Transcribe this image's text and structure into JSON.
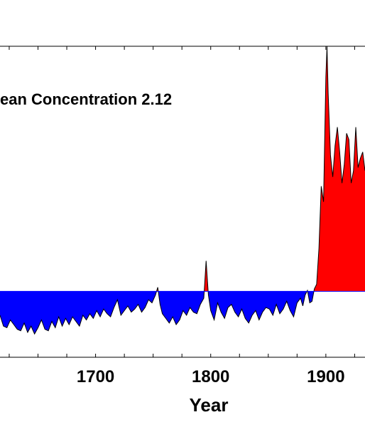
{
  "chart_data": {
    "type": "area",
    "title": "",
    "xlabel": "Year",
    "ylabel": "",
    "annotation": "ean Concentration 2.12",
    "x_ticks": [
      1700,
      1800,
      1900
    ],
    "xlim": [
      1617,
      1934
    ],
    "ylim": [
      0,
      10
    ],
    "baseline": 2.12,
    "colors": {
      "above": "#ff0000",
      "below": "#0000ff",
      "line": "#000000"
    },
    "series": [
      {
        "x": [
          1617,
          1620,
          1623,
          1626,
          1629,
          1632,
          1635,
          1638,
          1641,
          1644,
          1647,
          1650,
          1653,
          1656,
          1659,
          1662,
          1665,
          1668,
          1671,
          1674,
          1677,
          1680,
          1683,
          1686,
          1689,
          1692,
          1695,
          1698,
          1701,
          1704,
          1707,
          1710,
          1713,
          1716,
          1719,
          1722,
          1725,
          1728,
          1731,
          1734,
          1737,
          1740,
          1743,
          1746,
          1749,
          1752,
          1754,
          1756,
          1758,
          1761,
          1764,
          1767,
          1770,
          1773,
          1776,
          1779,
          1782,
          1785,
          1788,
          1791,
          1794,
          1796,
          1798,
          1800,
          1803,
          1806,
          1809,
          1812,
          1815,
          1818,
          1821,
          1824,
          1827,
          1830,
          1833,
          1836,
          1839,
          1842,
          1845,
          1848,
          1851,
          1854,
          1857,
          1860,
          1863,
          1866,
          1869,
          1872,
          1875,
          1878,
          1880,
          1882,
          1884,
          1886,
          1888,
          1890,
          1892,
          1894,
          1896,
          1898,
          1899,
          1900,
          1901,
          1902,
          1904,
          1906,
          1908,
          1910,
          1912,
          1914,
          1916,
          1918,
          1920,
          1922,
          1924,
          1926,
          1928,
          1930,
          1932,
          1934
        ],
        "values": [
          1.35,
          1.0,
          0.95,
          1.2,
          1.05,
          0.9,
          0.85,
          1.1,
          0.8,
          1.0,
          0.75,
          0.95,
          1.2,
          0.9,
          0.85,
          1.15,
          0.95,
          1.3,
          1.0,
          1.25,
          1.05,
          1.3,
          1.15,
          1.0,
          1.35,
          1.2,
          1.4,
          1.25,
          1.5,
          1.3,
          1.55,
          1.4,
          1.3,
          1.6,
          1.85,
          1.35,
          1.5,
          1.65,
          1.45,
          1.55,
          1.7,
          1.45,
          1.6,
          1.85,
          1.75,
          2.0,
          2.25,
          1.7,
          1.4,
          1.25,
          1.1,
          1.3,
          1.05,
          1.2,
          1.5,
          1.35,
          1.6,
          1.45,
          1.4,
          1.7,
          1.9,
          3.1,
          2.0,
          1.5,
          1.2,
          1.75,
          1.45,
          1.25,
          1.6,
          1.7,
          1.45,
          1.3,
          1.55,
          1.25,
          1.1,
          1.35,
          1.5,
          1.2,
          1.45,
          1.6,
          1.55,
          1.35,
          1.7,
          1.4,
          1.55,
          1.8,
          1.5,
          1.3,
          1.75,
          1.9,
          1.65,
          2.0,
          2.15,
          1.75,
          1.8,
          2.2,
          2.35,
          3.5,
          5.5,
          5.0,
          7.0,
          9.0,
          10.0,
          8.5,
          6.5,
          5.8,
          6.8,
          7.4,
          6.6,
          5.6,
          6.2,
          7.2,
          7.0,
          5.6,
          6.0,
          7.4,
          6.1,
          6.4,
          6.6,
          6.0
        ]
      }
    ]
  }
}
